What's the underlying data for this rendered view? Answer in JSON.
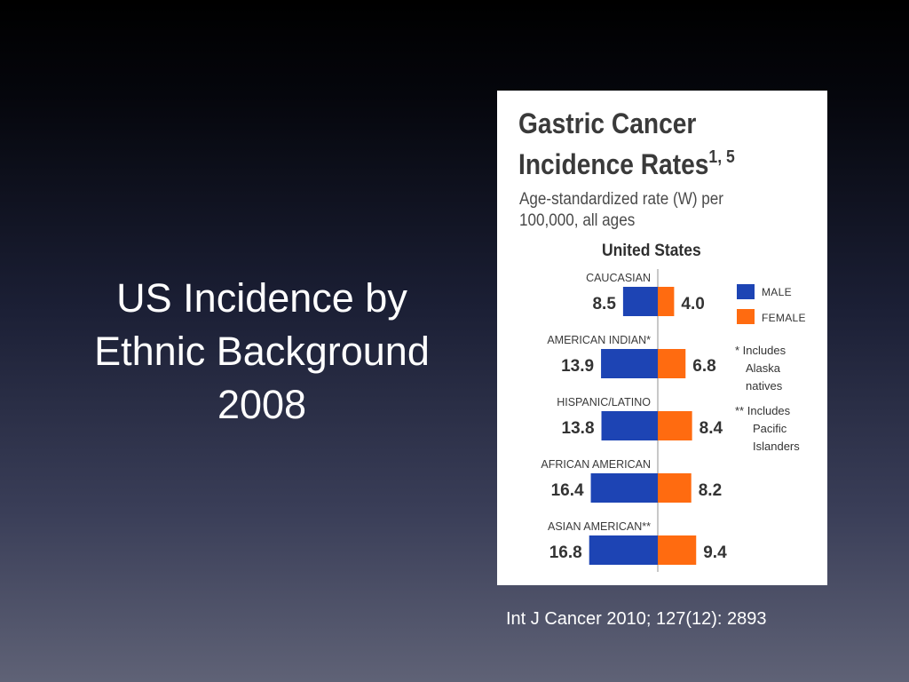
{
  "slide": {
    "title_lines": [
      "US Incidence by",
      "Ethnic Background",
      "2008"
    ],
    "citation": "Int J Cancer 2010; 127(12): 2893"
  },
  "chart_data": {
    "type": "bar",
    "orientation": "horizontal-diverging",
    "title_lines": [
      "Gastric Cancer",
      "Incidence Rates"
    ],
    "title_superscript": "1, 5",
    "subtitle_lines": [
      "Age-standardized rate (W) per",
      "100,000, all ages"
    ],
    "country": "United States",
    "categories": [
      "CAUCASIAN",
      "AMERICAN INDIAN*",
      "HISPANIC/LATINO",
      "AFRICAN AMERICAN",
      "ASIAN AMERICAN**"
    ],
    "series": [
      {
        "name": "MALE",
        "color": "#1d44b4",
        "values": [
          8.5,
          13.9,
          13.8,
          16.4,
          16.8
        ]
      },
      {
        "name": "FEMALE",
        "color": "#ff6b10",
        "values": [
          4.0,
          6.8,
          8.4,
          8.2,
          9.4
        ]
      }
    ],
    "value_labels": {
      "male": [
        "8.5",
        "13.9",
        "13.8",
        "16.4",
        "16.8"
      ],
      "female": [
        "4.0",
        "6.8",
        "8.4",
        "8.2",
        "9.4"
      ]
    },
    "legend": {
      "placement": "right",
      "male": "MALE",
      "female": "FEMALE",
      "footnote_1": [
        "* Includes",
        "Alaska",
        "natives"
      ],
      "footnote_2": [
        "** Includes",
        "Pacific",
        "Islanders"
      ]
    }
  }
}
